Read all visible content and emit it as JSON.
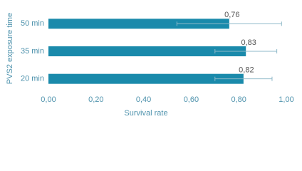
{
  "chart_data": {
    "type": "hbar",
    "x_label": "Survival rate",
    "y_label": "PVS2 exposure time",
    "categories": [
      "50 min",
      "35 min",
      "20 min"
    ],
    "values": [
      0.76,
      0.83,
      0.82
    ],
    "value_labels": [
      "0,76",
      "0,83",
      "0,82"
    ],
    "errors": [
      0.22,
      0.13,
      0.12
    ],
    "color": "#1a8aab",
    "error_color": "#8fb9c9",
    "xlim": [
      0,
      1
    ],
    "xticks": [
      {
        "value": 0,
        "label": "0,00"
      },
      {
        "value": 0.2,
        "label": "0,20"
      },
      {
        "value": 0.4,
        "label": "0,40"
      },
      {
        "value": 0.6,
        "label": "0,60"
      },
      {
        "value": 0.8,
        "label": "0,80"
      },
      {
        "value": 1,
        "label": "1,00"
      }
    ]
  }
}
